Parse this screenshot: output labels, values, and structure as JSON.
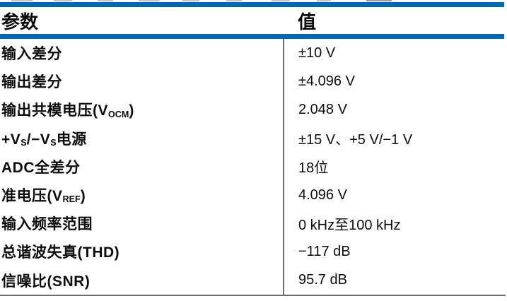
{
  "colors": {
    "accent_blue": "#0067b2",
    "rule_gray": "#6b6b6b",
    "text": "#0d0d0d"
  },
  "table": {
    "header": {
      "param_label": "参数",
      "value_label": "值"
    },
    "rows": [
      {
        "param": {
          "pre": "输入差分"
        },
        "value": "±10 V"
      },
      {
        "param": {
          "pre": "输出差分"
        },
        "value": "±4.096 V"
      },
      {
        "param": {
          "pre": "输出共模电压(V",
          "sub": "OCM",
          "post": ")"
        },
        "value": "2.048 V"
      },
      {
        "param": {
          "pre": "+V",
          "sub": "S",
          "mid": "/−V",
          "sub2": "S",
          "post": "电源"
        },
        "value": "±15 V、+5 V/−1 V"
      },
      {
        "param": {
          "pre": "ADC全差分"
        },
        "value": "18位"
      },
      {
        "param": {
          "pre": "准电压(V",
          "sub": "REF",
          "post": ")"
        },
        "value": "4.096 V"
      },
      {
        "param": {
          "pre": "输入频率范围"
        },
        "value": "0 kHz至100 kHz"
      },
      {
        "param": {
          "pre": "总谐波失真(THD)"
        },
        "value": "−117 dB"
      },
      {
        "param": {
          "pre": "信噪比(SNR)"
        },
        "value": "95.7 dB"
      }
    ]
  }
}
